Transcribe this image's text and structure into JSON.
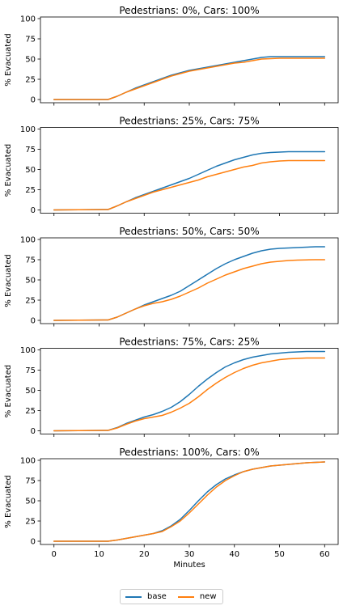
{
  "chart_data": {
    "type": "line",
    "xlabel": "Minutes",
    "ylabel": "% Evacuated",
    "xlim": [
      -3,
      63
    ],
    "ylim": [
      -4,
      102
    ],
    "xticks": [
      0,
      10,
      20,
      30,
      40,
      50,
      60
    ],
    "yticks": [
      0,
      25,
      50,
      75,
      100
    ],
    "grid": false,
    "legend_position": "bottom-center",
    "colors": {
      "base": "#1f77b4",
      "new": "#ff7f0e"
    },
    "legend": [
      {
        "name": "base",
        "color": "#1f77b4"
      },
      {
        "name": "new",
        "color": "#ff7f0e"
      }
    ],
    "x": [
      0,
      12,
      14,
      16,
      18,
      20,
      22,
      24,
      26,
      28,
      30,
      32,
      34,
      36,
      38,
      40,
      42,
      44,
      46,
      48,
      50,
      52,
      54,
      56,
      58,
      60
    ],
    "panels": [
      {
        "title": "Pedestrians: 0%, Cars: 100%",
        "series": [
          {
            "name": "base",
            "values": [
              0,
              0,
              4,
              9,
              14,
              18,
              22,
              26,
              30,
              33,
              36,
              38,
              40,
              42,
              44,
              46,
              48,
              50,
              52,
              53,
              53,
              53,
              53,
              53,
              53,
              53
            ]
          },
          {
            "name": "new",
            "values": [
              0,
              0,
              4,
              9,
              13,
              17,
              21,
              25,
              29,
              32,
              35,
              37,
              39,
              41,
              43,
              45,
              46,
              48,
              50,
              50.5,
              51,
              51,
              51,
              51,
              51,
              51
            ]
          }
        ]
      },
      {
        "title": "Pedestrians: 25%, Cars: 75%",
        "series": [
          {
            "name": "base",
            "values": [
              0,
              0.5,
              5,
              10,
              15,
              19,
              23,
              27,
              31,
              35,
              39,
              44,
              49,
              54,
              58,
              62,
              65,
              68,
              70,
              71,
              71.5,
              72,
              72,
              72,
              72,
              72
            ]
          },
          {
            "name": "new",
            "values": [
              0,
              0.5,
              5,
              10,
              14,
              18,
              22,
              25,
              28,
              31,
              34,
              37,
              41,
              44,
              47,
              50,
              53,
              55,
              58,
              59.5,
              60.5,
              61,
              61,
              61,
              61,
              61
            ]
          }
        ]
      },
      {
        "title": "Pedestrians: 50%, Cars: 50%",
        "series": [
          {
            "name": "base",
            "values": [
              0,
              0.5,
              4,
              9,
              14,
              19,
              23,
              27,
              31,
              36,
              43,
              50,
              57,
              64,
              70,
              75,
              79,
              83,
              86,
              88,
              89,
              89.5,
              90,
              90.5,
              91,
              91
            ]
          },
          {
            "name": "new",
            "values": [
              0,
              0.5,
              4,
              9,
              14,
              18,
              21,
              23,
              26,
              30,
              35,
              40,
              46,
              51,
              56,
              60,
              64,
              67,
              70,
              72,
              73,
              74,
              74.5,
              74.8,
              75,
              75
            ]
          }
        ]
      },
      {
        "title": "Pedestrians: 75%, Cars: 25%",
        "series": [
          {
            "name": "base",
            "values": [
              0,
              0.5,
              4,
              9,
              13,
              17,
              20,
              24,
              29,
              36,
              45,
              55,
              64,
              72,
              79,
              84,
              88,
              91,
              93,
              95,
              96,
              97,
              97.5,
              98,
              98,
              98
            ]
          },
          {
            "name": "new",
            "values": [
              0,
              0.5,
              3.5,
              8,
              12,
              15,
              17,
              19,
              23,
              28,
              34,
              42,
              51,
              59,
              66,
              72,
              77,
              81,
              84,
              86,
              88,
              89,
              89.5,
              90,
              90,
              90
            ]
          }
        ]
      },
      {
        "title": "Pedestrians: 100%, Cars: 0%",
        "series": [
          {
            "name": "base",
            "values": [
              0,
              0,
              1.5,
              3.5,
              5.5,
              7.5,
              9.5,
              13,
              19,
              27,
              38,
              50,
              61,
              70,
              77,
              82,
              86,
              89,
              91,
              93,
              94,
              95,
              96,
              97,
              97.5,
              98
            ]
          },
          {
            "name": "new",
            "values": [
              0,
              0,
              1.5,
              3.5,
              5.5,
              7.5,
              9.5,
              12,
              18,
              25,
              35,
              46,
              57,
              67,
              75,
              81,
              86,
              89,
              91,
              93,
              94,
              95,
              96,
              97,
              97.5,
              98
            ]
          }
        ]
      }
    ]
  }
}
